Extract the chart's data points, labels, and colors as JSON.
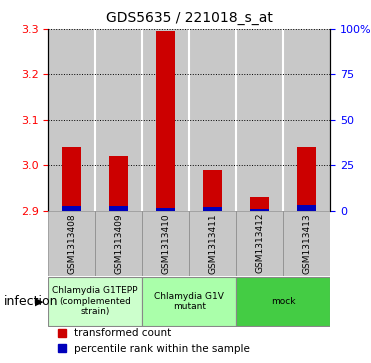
{
  "title": "GDS5635 / 221018_s_at",
  "samples": [
    "GSM1313408",
    "GSM1313409",
    "GSM1313410",
    "GSM1313411",
    "GSM1313412",
    "GSM1313413"
  ],
  "red_values": [
    3.04,
    3.02,
    3.295,
    2.99,
    2.93,
    3.04
  ],
  "blue_pct": [
    10,
    10,
    5,
    8,
    4,
    12
  ],
  "y_min": 2.9,
  "y_max": 3.3,
  "y_ticks": [
    2.9,
    3.0,
    3.1,
    3.2,
    3.3
  ],
  "right_ticks_pct": [
    0,
    25,
    50,
    75,
    100
  ],
  "groups_info": [
    {
      "label": "Chlamydia G1TEPP\n(complemented\nstrain)",
      "color": "#ccffcc",
      "cols": [
        0,
        1
      ]
    },
    {
      "label": "Chlamydia G1V\nmutant",
      "color": "#aaffaa",
      "cols": [
        2,
        3
      ]
    },
    {
      "label": "mock",
      "color": "#44cc44",
      "cols": [
        4,
        5
      ]
    }
  ],
  "infection_label": "infection",
  "red_color": "#cc0000",
  "blue_color": "#0000bb",
  "bar_bg_color": "#c8c8c8",
  "legend_red": "transformed count",
  "legend_blue": "percentile rank within the sample",
  "bar_width": 0.4
}
